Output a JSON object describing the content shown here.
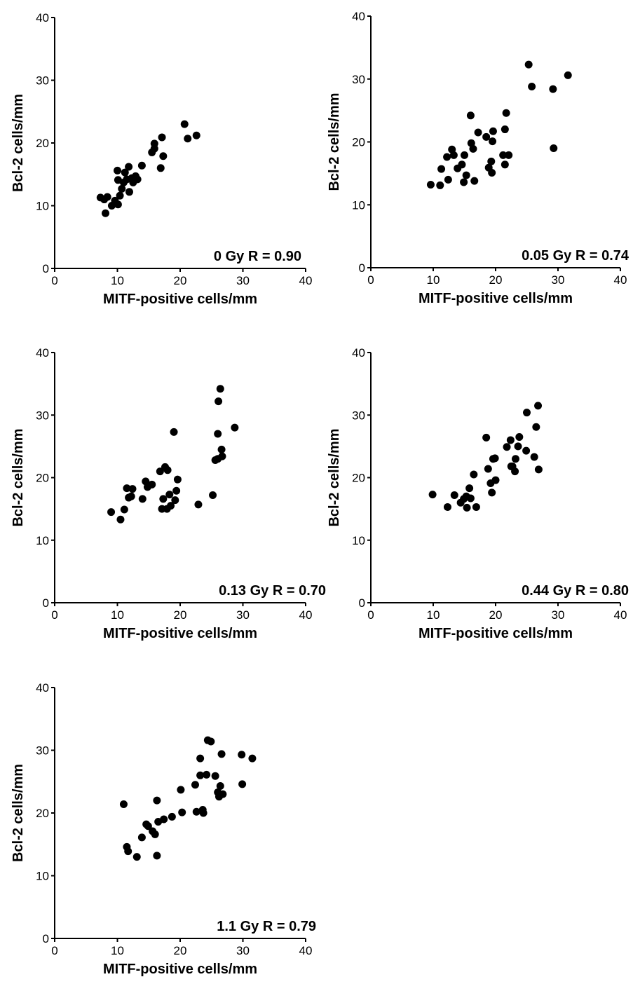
{
  "chart_data": [
    {
      "type": "scatter",
      "xlabel": "MITF-positive cells/mm",
      "ylabel": "Bcl-2 cells/mm",
      "annotation": "0 Gy R = 0.90",
      "xlim": [
        0,
        40
      ],
      "ylim": [
        0,
        40
      ],
      "xticks": [
        "0",
        "10",
        "20",
        "30",
        "40"
      ],
      "yticks": [
        "0",
        "10",
        "20",
        "30",
        "40"
      ],
      "grid": false,
      "points": [
        [
          7.3,
          11.3
        ],
        [
          7.9,
          11.0
        ],
        [
          8.1,
          8.8
        ],
        [
          8.4,
          11.4
        ],
        [
          9.1,
          10.0
        ],
        [
          9.6,
          10.8
        ],
        [
          10.0,
          15.6
        ],
        [
          10.1,
          14.1
        ],
        [
          10.1,
          10.2
        ],
        [
          10.4,
          11.6
        ],
        [
          10.7,
          12.7
        ],
        [
          11.0,
          13.7
        ],
        [
          11.2,
          15.3
        ],
        [
          11.5,
          14.2
        ],
        [
          11.8,
          16.2
        ],
        [
          11.9,
          12.2
        ],
        [
          12.3,
          14.4
        ],
        [
          12.5,
          13.7
        ],
        [
          12.9,
          14.7
        ],
        [
          13.2,
          14.2
        ],
        [
          13.9,
          16.4
        ],
        [
          15.5,
          18.5
        ],
        [
          15.9,
          19.9
        ],
        [
          15.9,
          19.1
        ],
        [
          16.9,
          16.0
        ],
        [
          17.1,
          20.9
        ],
        [
          17.3,
          17.9
        ],
        [
          20.7,
          23.0
        ],
        [
          21.2,
          20.7
        ],
        [
          22.6,
          21.2
        ]
      ]
    },
    {
      "type": "scatter",
      "xlabel": "MITF-positive cells/mm",
      "ylabel": "Bcl-2 cells/mm",
      "annotation": "0.05 Gy R = 0.74",
      "xlim": [
        0,
        40
      ],
      "ylim": [
        0,
        40
      ],
      "xticks": [
        "0",
        "10",
        "20",
        "30",
        "40"
      ],
      "yticks": [
        "0",
        "10",
        "20",
        "30",
        "40"
      ],
      "grid": false,
      "points": [
        [
          9.6,
          13.2
        ],
        [
          11.1,
          13.1
        ],
        [
          11.3,
          15.7
        ],
        [
          12.2,
          17.6
        ],
        [
          12.4,
          14.0
        ],
        [
          13.0,
          18.8
        ],
        [
          13.3,
          17.9
        ],
        [
          13.9,
          15.8
        ],
        [
          14.6,
          16.4
        ],
        [
          14.9,
          13.6
        ],
        [
          15.0,
          17.9
        ],
        [
          15.3,
          14.7
        ],
        [
          16.0,
          24.2
        ],
        [
          16.1,
          19.8
        ],
        [
          16.4,
          18.9
        ],
        [
          16.6,
          13.8
        ],
        [
          17.2,
          21.5
        ],
        [
          18.5,
          20.8
        ],
        [
          18.9,
          15.9
        ],
        [
          19.3,
          16.9
        ],
        [
          19.5,
          20.1
        ],
        [
          19.4,
          15.1
        ],
        [
          19.6,
          21.7
        ],
        [
          21.2,
          17.9
        ],
        [
          21.5,
          22.0
        ],
        [
          21.5,
          16.4
        ],
        [
          21.7,
          24.6
        ],
        [
          22.1,
          17.9
        ],
        [
          25.3,
          32.3
        ],
        [
          25.8,
          28.8
        ],
        [
          29.2,
          28.4
        ],
        [
          29.3,
          19.0
        ],
        [
          31.6,
          30.6
        ]
      ]
    },
    {
      "type": "scatter",
      "xlabel": "MITF-positive cells/mm",
      "ylabel": "Bcl-2 cells/mm",
      "annotation": "0.13 Gy R = 0.70",
      "xlim": [
        0,
        40
      ],
      "ylim": [
        0,
        40
      ],
      "xticks": [
        "0",
        "10",
        "20",
        "30",
        "40"
      ],
      "yticks": [
        "0",
        "10",
        "20",
        "30",
        "40"
      ],
      "grid": false,
      "points": [
        [
          9.0,
          14.5
        ],
        [
          10.5,
          13.3
        ],
        [
          11.1,
          14.9
        ],
        [
          11.5,
          18.3
        ],
        [
          11.8,
          16.8
        ],
        [
          12.2,
          17.0
        ],
        [
          12.4,
          18.2
        ],
        [
          14.0,
          16.6
        ],
        [
          14.5,
          19.4
        ],
        [
          14.8,
          18.5
        ],
        [
          15.5,
          18.9
        ],
        [
          16.8,
          21.0
        ],
        [
          17.1,
          15.0
        ],
        [
          17.3,
          16.6
        ],
        [
          17.6,
          21.7
        ],
        [
          17.9,
          15.0
        ],
        [
          18.0,
          21.2
        ],
        [
          18.3,
          17.3
        ],
        [
          18.5,
          15.5
        ],
        [
          19.0,
          27.3
        ],
        [
          19.2,
          16.4
        ],
        [
          19.4,
          17.9
        ],
        [
          19.6,
          19.7
        ],
        [
          22.9,
          15.7
        ],
        [
          25.2,
          17.2
        ],
        [
          25.6,
          22.8
        ],
        [
          26.0,
          23.0
        ],
        [
          26.0,
          27.0
        ],
        [
          26.1,
          32.2
        ],
        [
          26.4,
          34.2
        ],
        [
          26.6,
          24.5
        ],
        [
          26.7,
          23.4
        ],
        [
          28.7,
          28.0
        ]
      ]
    },
    {
      "type": "scatter",
      "xlabel": "MITF-positive cells/mm",
      "ylabel": "Bcl-2 cells/mm",
      "annotation": "0.44 Gy R = 0.80",
      "xlim": [
        0,
        40
      ],
      "ylim": [
        0,
        40
      ],
      "xticks": [
        "0",
        "10",
        "20",
        "30",
        "40"
      ],
      "yticks": [
        "0",
        "10",
        "20",
        "30",
        "40"
      ],
      "grid": false,
      "points": [
        [
          9.9,
          17.3
        ],
        [
          12.3,
          15.3
        ],
        [
          13.4,
          17.2
        ],
        [
          14.4,
          16.0
        ],
        [
          14.9,
          16.6
        ],
        [
          15.3,
          17.0
        ],
        [
          15.4,
          15.2
        ],
        [
          15.8,
          18.3
        ],
        [
          16.0,
          16.7
        ],
        [
          16.5,
          20.5
        ],
        [
          16.9,
          15.3
        ],
        [
          18.5,
          26.4
        ],
        [
          18.8,
          21.4
        ],
        [
          19.2,
          19.1
        ],
        [
          19.4,
          17.6
        ],
        [
          19.6,
          23.0
        ],
        [
          19.9,
          23.1
        ],
        [
          20.0,
          19.6
        ],
        [
          21.8,
          24.9
        ],
        [
          22.4,
          26.0
        ],
        [
          22.5,
          21.8
        ],
        [
          22.7,
          21.8
        ],
        [
          23.1,
          21.0
        ],
        [
          23.2,
          23.0
        ],
        [
          23.6,
          25.0
        ],
        [
          23.8,
          26.5
        ],
        [
          24.9,
          24.3
        ],
        [
          25.0,
          30.4
        ],
        [
          26.2,
          23.3
        ],
        [
          26.5,
          28.1
        ],
        [
          26.8,
          31.5
        ],
        [
          26.9,
          21.3
        ]
      ]
    },
    {
      "type": "scatter",
      "xlabel": "MITF-positive cells/mm",
      "ylabel": "Bcl-2 cells/mm",
      "annotation": "1.1 Gy R = 0.79",
      "xlim": [
        0,
        40
      ],
      "ylim": [
        0,
        40
      ],
      "xticks": [
        "0",
        "10",
        "20",
        "30",
        "40"
      ],
      "yticks": [
        "0",
        "10",
        "20",
        "30",
        "40"
      ],
      "grid": false,
      "points": [
        [
          11.0,
          21.4
        ],
        [
          11.5,
          14.6
        ],
        [
          11.7,
          13.9
        ],
        [
          13.1,
          13.0
        ],
        [
          13.9,
          16.1
        ],
        [
          14.6,
          18.2
        ],
        [
          14.9,
          17.9
        ],
        [
          15.6,
          17.1
        ],
        [
          16.0,
          16.6
        ],
        [
          16.3,
          22.0
        ],
        [
          16.3,
          13.2
        ],
        [
          16.5,
          18.6
        ],
        [
          17.4,
          19.0
        ],
        [
          18.7,
          19.4
        ],
        [
          20.1,
          23.7
        ],
        [
          20.3,
          20.1
        ],
        [
          22.4,
          24.5
        ],
        [
          22.6,
          20.2
        ],
        [
          23.2,
          28.7
        ],
        [
          23.2,
          26.0
        ],
        [
          23.6,
          20.5
        ],
        [
          23.7,
          20.0
        ],
        [
          24.2,
          26.1
        ],
        [
          24.4,
          31.6
        ],
        [
          24.9,
          31.4
        ],
        [
          25.6,
          25.9
        ],
        [
          26.0,
          23.3
        ],
        [
          26.2,
          22.6
        ],
        [
          26.4,
          24.3
        ],
        [
          26.6,
          29.4
        ],
        [
          26.8,
          23.0
        ],
        [
          29.8,
          29.3
        ],
        [
          29.9,
          24.6
        ],
        [
          31.5,
          28.7
        ]
      ]
    }
  ]
}
